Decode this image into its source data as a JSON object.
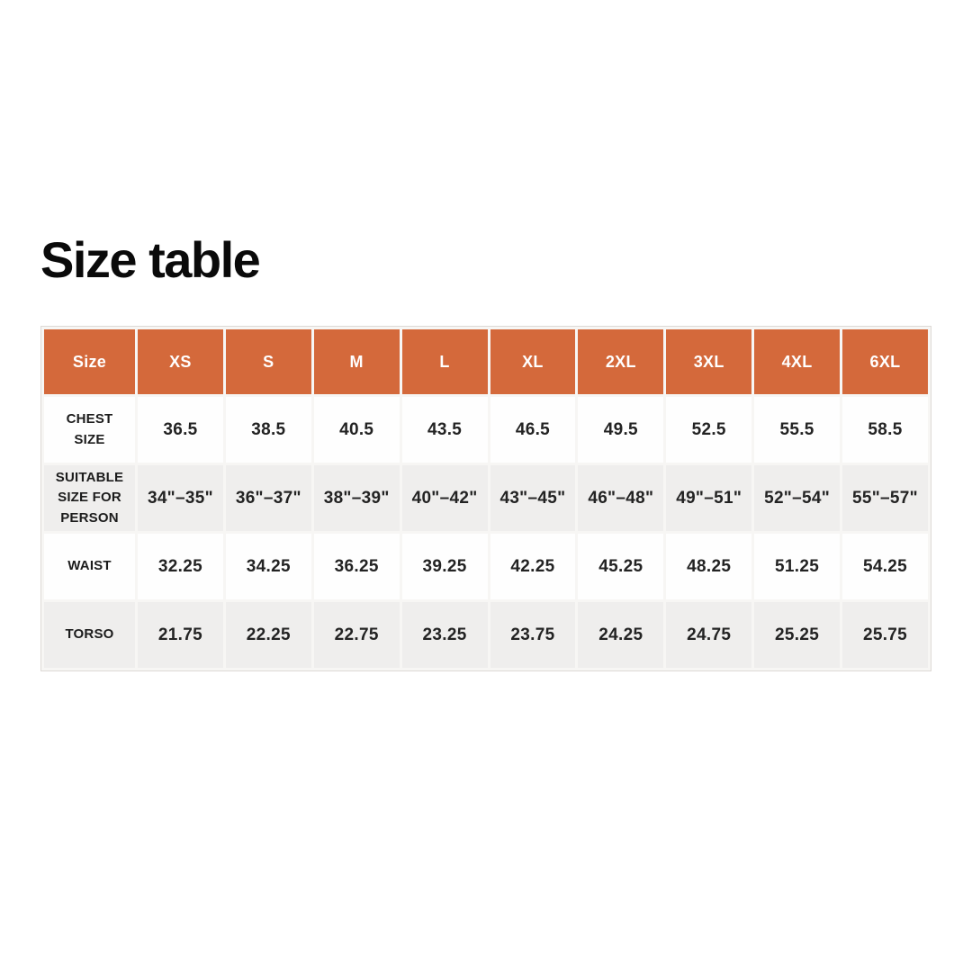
{
  "page": {
    "title": "Size table"
  },
  "colors": {
    "header_bg": "#d4693b",
    "header_text": "#ffffff",
    "row_light_bg": "#fefefe",
    "row_shade_bg": "#efeeed",
    "table_border": "#ddd9d5",
    "text": "#1c1c1c",
    "page_bg": "#ffffff"
  },
  "table": {
    "header": [
      "Size",
      "XS",
      "S",
      "M",
      "L",
      "XL",
      "2XL",
      "3XL",
      "4XL",
      "6XL"
    ],
    "rows": [
      {
        "label": "CHEST SIZE",
        "values": [
          "36.5",
          "38.5",
          "40.5",
          "43.5",
          "46.5",
          "49.5",
          "52.5",
          "55.5",
          "58.5"
        ]
      },
      {
        "label": "SUITABLE SIZE FOR PERSON",
        "values": [
          "34\"–35\"",
          "36\"–37\"",
          "38\"–39\"",
          "40\"–42\"",
          "43\"–45\"",
          "46\"–48\"",
          "49\"–51\"",
          "52\"–54\"",
          "55\"–57\""
        ]
      },
      {
        "label": "WAIST",
        "values": [
          "32.25",
          "34.25",
          "36.25",
          "39.25",
          "42.25",
          "45.25",
          "48.25",
          "51.25",
          "54.25"
        ]
      },
      {
        "label": "TORSO",
        "values": [
          "21.75",
          "22.25",
          "22.75",
          "23.25",
          "23.75",
          "24.25",
          "24.75",
          "25.25",
          "25.75"
        ]
      }
    ]
  },
  "chart_data": {
    "type": "table",
    "title": "Size table",
    "columns": [
      "Size",
      "XS",
      "S",
      "M",
      "L",
      "XL",
      "2XL",
      "3XL",
      "4XL",
      "6XL"
    ],
    "rows": [
      [
        "CHEST SIZE",
        36.5,
        38.5,
        40.5,
        43.5,
        46.5,
        49.5,
        52.5,
        55.5,
        58.5
      ],
      [
        "SUITABLE SIZE FOR PERSON",
        "34\"–35\"",
        "36\"–37\"",
        "38\"–39\"",
        "40\"–42\"",
        "43\"–45\"",
        "46\"–48\"",
        "49\"–51\"",
        "52\"–54\"",
        "55\"–57\""
      ],
      [
        "WAIST",
        32.25,
        34.25,
        36.25,
        39.25,
        42.25,
        45.25,
        48.25,
        51.25,
        54.25
      ],
      [
        "TORSO",
        21.75,
        22.25,
        22.75,
        23.25,
        23.75,
        24.25,
        24.75,
        25.25,
        25.75
      ]
    ],
    "layout_hints": {
      "header_fill": "#d4693b",
      "alternating_rows": true,
      "grid": "spaced-cells"
    }
  }
}
